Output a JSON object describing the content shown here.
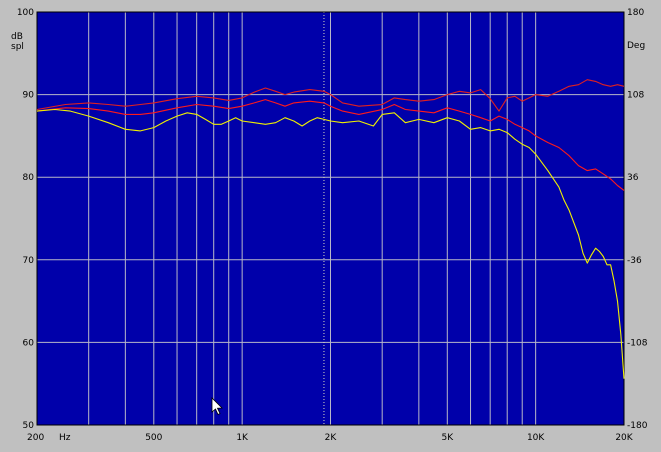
{
  "chart_data": {
    "type": "line",
    "x_scale": "log",
    "xlim": [
      200,
      20000
    ],
    "ylim": [
      50,
      100
    ],
    "y2lim": [
      -180,
      180
    ],
    "ylabel": [
      "dB",
      "spl"
    ],
    "y2label": "Deg",
    "grid": true,
    "colors": {
      "background": "#0000aa",
      "grid": "#b8b8c8",
      "cursor": "#d8d8c0",
      "series_yellow": "#f0f000",
      "series_red": "#ff1a1a",
      "series_red_top": "#e02020"
    },
    "x_ticks": [
      {
        "value": 200,
        "label": "200"
      },
      {
        "value": 500,
        "label": "500"
      },
      {
        "value": 1000,
        "label": "1K"
      },
      {
        "value": 2000,
        "label": "2K"
      },
      {
        "value": 5000,
        "label": "5K"
      },
      {
        "value": 10000,
        "label": "10K"
      },
      {
        "value": 20000,
        "label": "20K"
      }
    ],
    "x_unit": "Hz",
    "x_minor": [
      300,
      400,
      500,
      600,
      700,
      800,
      900,
      1000,
      2000,
      3000,
      4000,
      5000,
      6000,
      7000,
      8000,
      9000,
      10000
    ],
    "y_ticks": [
      {
        "value": 100,
        "label": "100"
      },
      {
        "value": 90,
        "label": "90"
      },
      {
        "value": 80,
        "label": "80"
      },
      {
        "value": 70,
        "label": "70"
      },
      {
        "value": 60,
        "label": "60"
      },
      {
        "value": 50,
        "label": "50"
      }
    ],
    "y2_ticks": [
      {
        "value": 180,
        "label": "180"
      },
      {
        "value": 108,
        "label": "108"
      },
      {
        "value": 36,
        "label": "36"
      },
      {
        "value": -36,
        "label": "-36"
      },
      {
        "value": -108,
        "label": "-108"
      },
      {
        "value": -180,
        "label": "-180"
      }
    ],
    "cursor_x": 1900,
    "series": [
      {
        "color_key": "series_red_top",
        "points": [
          [
            200,
            88.2
          ],
          [
            250,
            88.8
          ],
          [
            300,
            89.0
          ],
          [
            350,
            88.8
          ],
          [
            400,
            88.6
          ],
          [
            450,
            88.8
          ],
          [
            500,
            89.0
          ],
          [
            600,
            89.5
          ],
          [
            700,
            89.8
          ],
          [
            800,
            89.6
          ],
          [
            900,
            89.3
          ],
          [
            1000,
            89.6
          ],
          [
            1100,
            90.3
          ],
          [
            1200,
            90.8
          ],
          [
            1300,
            90.4
          ],
          [
            1400,
            90.0
          ],
          [
            1500,
            90.3
          ],
          [
            1700,
            90.6
          ],
          [
            1900,
            90.4
          ],
          [
            2000,
            90.0
          ],
          [
            2200,
            89.0
          ],
          [
            2500,
            88.6
          ],
          [
            3000,
            88.8
          ],
          [
            3300,
            89.6
          ],
          [
            3600,
            89.4
          ],
          [
            4000,
            89.2
          ],
          [
            4500,
            89.4
          ],
          [
            5000,
            90.0
          ],
          [
            5500,
            90.4
          ],
          [
            6000,
            90.2
          ],
          [
            6500,
            90.6
          ],
          [
            7000,
            89.5
          ],
          [
            7500,
            88.0
          ],
          [
            8000,
            89.6
          ],
          [
            8500,
            89.8
          ],
          [
            9000,
            89.2
          ],
          [
            9500,
            89.6
          ],
          [
            10000,
            90.0
          ],
          [
            11000,
            89.8
          ],
          [
            12000,
            90.4
          ],
          [
            13000,
            91.0
          ],
          [
            14000,
            91.2
          ],
          [
            15000,
            91.8
          ],
          [
            16000,
            91.6
          ],
          [
            17000,
            91.2
          ],
          [
            18000,
            91.0
          ],
          [
            19000,
            91.2
          ],
          [
            20000,
            91.0
          ]
        ]
      },
      {
        "color_key": "series_red",
        "points": [
          [
            200,
            88.0
          ],
          [
            250,
            88.4
          ],
          [
            300,
            88.3
          ],
          [
            350,
            88.0
          ],
          [
            400,
            87.6
          ],
          [
            450,
            87.6
          ],
          [
            500,
            87.8
          ],
          [
            600,
            88.4
          ],
          [
            700,
            88.8
          ],
          [
            800,
            88.6
          ],
          [
            900,
            88.3
          ],
          [
            1000,
            88.6
          ],
          [
            1100,
            89.0
          ],
          [
            1200,
            89.4
          ],
          [
            1300,
            89.0
          ],
          [
            1400,
            88.6
          ],
          [
            1500,
            89.0
          ],
          [
            1700,
            89.2
          ],
          [
            1900,
            89.0
          ],
          [
            2000,
            88.6
          ],
          [
            2200,
            88.0
          ],
          [
            2500,
            87.6
          ],
          [
            3000,
            88.2
          ],
          [
            3300,
            88.8
          ],
          [
            3600,
            88.2
          ],
          [
            4000,
            88.0
          ],
          [
            4500,
            87.8
          ],
          [
            5000,
            88.4
          ],
          [
            5500,
            88.0
          ],
          [
            6000,
            87.6
          ],
          [
            6500,
            87.2
          ],
          [
            7000,
            86.8
          ],
          [
            7500,
            87.4
          ],
          [
            8000,
            87.0
          ],
          [
            8500,
            86.4
          ],
          [
            9000,
            86.0
          ],
          [
            9500,
            85.6
          ],
          [
            10000,
            85.0
          ],
          [
            11000,
            84.2
          ],
          [
            12000,
            83.6
          ],
          [
            13000,
            82.6
          ],
          [
            14000,
            81.4
          ],
          [
            15000,
            80.8
          ],
          [
            16000,
            81.0
          ],
          [
            17000,
            80.4
          ],
          [
            18000,
            79.8
          ],
          [
            19000,
            79.0
          ],
          [
            20000,
            78.4
          ]
        ]
      },
      {
        "color_key": "series_yellow",
        "points": [
          [
            200,
            88.0
          ],
          [
            230,
            88.2
          ],
          [
            260,
            88.0
          ],
          [
            300,
            87.4
          ],
          [
            350,
            86.6
          ],
          [
            400,
            85.8
          ],
          [
            450,
            85.6
          ],
          [
            500,
            86.0
          ],
          [
            550,
            86.8
          ],
          [
            600,
            87.4
          ],
          [
            650,
            87.8
          ],
          [
            700,
            87.6
          ],
          [
            750,
            87.0
          ],
          [
            800,
            86.4
          ],
          [
            850,
            86.4
          ],
          [
            900,
            86.8
          ],
          [
            950,
            87.2
          ],
          [
            1000,
            86.8
          ],
          [
            1100,
            86.6
          ],
          [
            1200,
            86.4
          ],
          [
            1300,
            86.6
          ],
          [
            1400,
            87.2
          ],
          [
            1500,
            86.8
          ],
          [
            1600,
            86.2
          ],
          [
            1700,
            86.8
          ],
          [
            1800,
            87.2
          ],
          [
            1900,
            87.0
          ],
          [
            2000,
            86.8
          ],
          [
            2200,
            86.6
          ],
          [
            2500,
            86.8
          ],
          [
            2800,
            86.2
          ],
          [
            3000,
            87.6
          ],
          [
            3300,
            87.8
          ],
          [
            3600,
            86.6
          ],
          [
            4000,
            87.0
          ],
          [
            4500,
            86.6
          ],
          [
            5000,
            87.2
          ],
          [
            5500,
            86.8
          ],
          [
            6000,
            85.8
          ],
          [
            6500,
            86.0
          ],
          [
            7000,
            85.6
          ],
          [
            7500,
            85.8
          ],
          [
            8000,
            85.4
          ],
          [
            8500,
            84.6
          ],
          [
            9000,
            84.0
          ],
          [
            9500,
            83.6
          ],
          [
            10000,
            82.8
          ],
          [
            11000,
            80.8
          ],
          [
            12000,
            78.8
          ],
          [
            12500,
            77.2
          ],
          [
            13000,
            76.0
          ],
          [
            14000,
            73.0
          ],
          [
            14500,
            70.8
          ],
          [
            15000,
            69.6
          ],
          [
            15500,
            70.6
          ],
          [
            16000,
            71.4
          ],
          [
            16500,
            71.0
          ],
          [
            17000,
            70.4
          ],
          [
            17500,
            69.4
          ],
          [
            18000,
            69.4
          ],
          [
            18500,
            67.4
          ],
          [
            19000,
            65.0
          ],
          [
            19500,
            61.0
          ],
          [
            20000,
            55.6
          ]
        ]
      }
    ]
  }
}
